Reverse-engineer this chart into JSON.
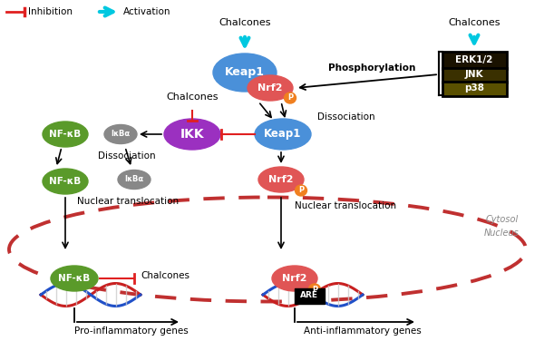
{
  "fig_width": 6.0,
  "fig_height": 3.76,
  "bg_color": "#ffffff",
  "colors": {
    "keap1_blue": "#4a90d9",
    "nrf2_red": "#e05555",
    "nfkb_green": "#5a9a2a",
    "ikk_purple": "#9b30c0",
    "ikba_gray": "#888888",
    "p_orange": "#f08020",
    "cyan_arrow": "#00c8e0",
    "red_inhibit": "#e02020",
    "dna_red": "#c82020",
    "dna_blue": "#2050c8",
    "dashed_border": "#c03030",
    "erk_bg": "#1a1200",
    "jnk_bg": "#3a3000",
    "p38_bg": "#5a5000"
  },
  "labels": {
    "inhibition": "Inhibition",
    "activation": "Activation",
    "chalcones": "Chalcones",
    "phosphorylation": "Phosphorylation",
    "dissociation": "Dissociation",
    "nuclear_translocation": "Nuclear translocation",
    "pro_inflammatory": "Pro-inflammatory genes",
    "anti_inflammatory": "Anti-inflammatory genes",
    "cytosol": "Cytosol",
    "nucleus": "Nucleus"
  }
}
